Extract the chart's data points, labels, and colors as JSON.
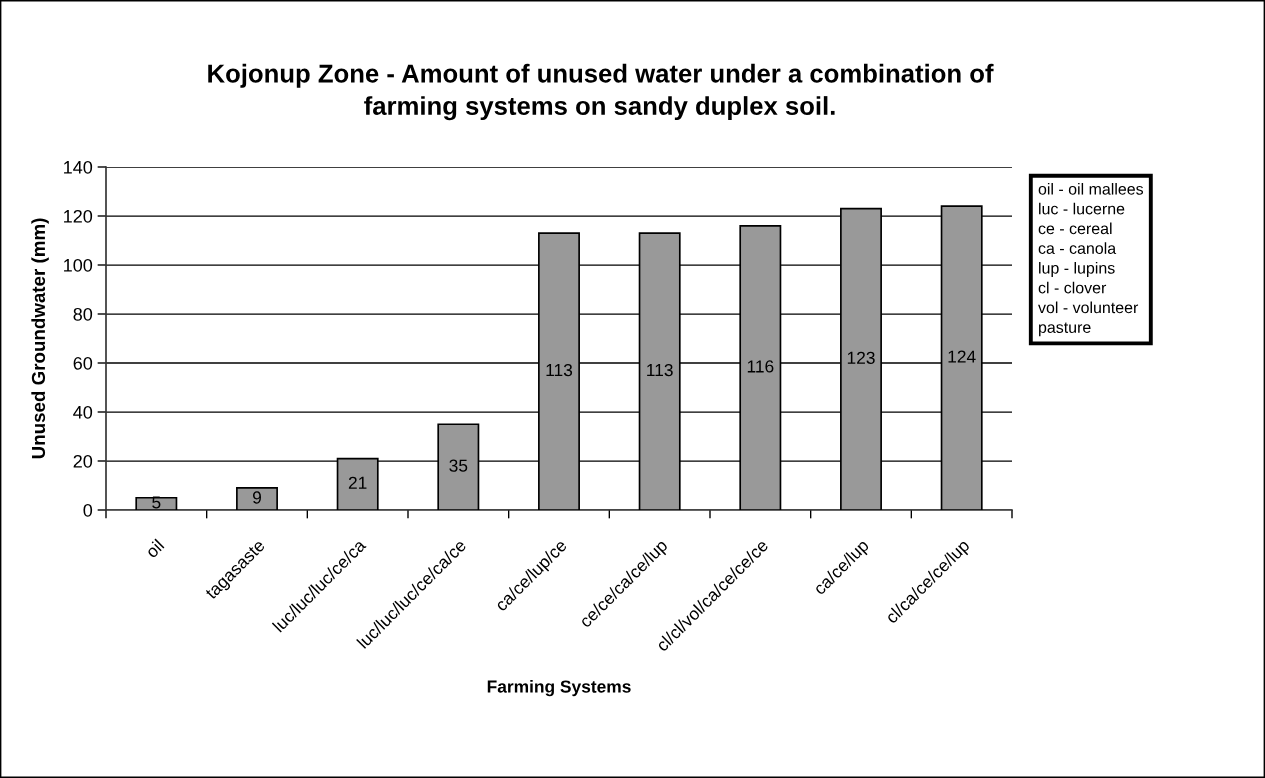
{
  "chart_data": {
    "type": "bar",
    "title": "Kojonup Zone - Amount of unused water under a combination of\nfarming systems on sandy duplex soil.",
    "xlabel": "Farming Systems",
    "ylabel": "Unused Groundwater (mm)",
    "categories": [
      "oil",
      "tagasaste",
      "luc/luc/luc/ce/ca",
      "luc/luc/luc/ce/ca/ce",
      "ca/ce/lup/ce",
      "ce/ce/ca/ce/lup",
      "cl/cl/vol/ca/ce/ce/ce",
      "ca/ce/lup",
      "cl/ca/ce/ce/lup"
    ],
    "values": [
      5,
      9,
      21,
      35,
      113,
      113,
      116,
      123,
      124
    ],
    "color": "#999999",
    "ylim": [
      0,
      140
    ],
    "yticks": [
      0,
      20,
      40,
      60,
      80,
      100,
      120,
      140
    ],
    "grid": "y",
    "data_labels": true,
    "legend": false,
    "annotations": [
      "oil - oil mallees\nluc - lucerne\nce - cereal\nca - canola\nlup - lupins\ncl - clover\nvol - volunteer\npasture"
    ]
  }
}
